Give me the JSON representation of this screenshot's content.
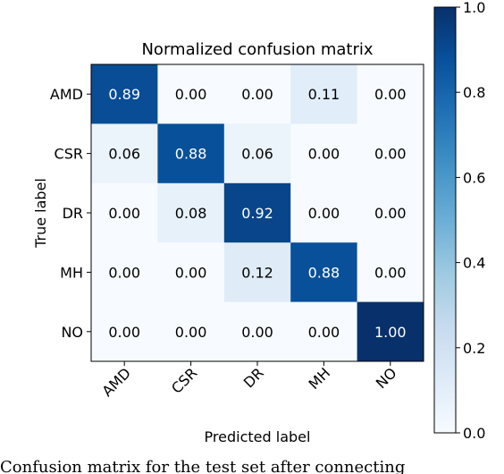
{
  "chart_data": {
    "type": "heatmap",
    "title": "Normalized confusion matrix",
    "xlabel": "Predicted label",
    "ylabel": "True label",
    "row_labels": [
      "AMD",
      "CSR",
      "DR",
      "MH",
      "NO"
    ],
    "col_labels": [
      "AMD",
      "CSR",
      "DR",
      "MH",
      "NO"
    ],
    "values": [
      [
        0.89,
        0.0,
        0.0,
        0.11,
        0.0
      ],
      [
        0.06,
        0.88,
        0.06,
        0.0,
        0.0
      ],
      [
        0.0,
        0.08,
        0.92,
        0.0,
        0.0
      ],
      [
        0.0,
        0.0,
        0.12,
        0.88,
        0.0
      ],
      [
        0.0,
        0.0,
        0.0,
        0.0,
        1.0
      ]
    ],
    "colorbar": {
      "min": 0.0,
      "max": 1.0,
      "ticks": [
        "0.0",
        "0.2",
        "0.4",
        "0.6",
        "0.8",
        "1.0"
      ]
    },
    "colormap": [
      "#f7fbff",
      "#deebf7",
      "#c6dbef",
      "#9ecae1",
      "#6baed6",
      "#4292c6",
      "#2171b5",
      "#08519c",
      "#08306b"
    ]
  },
  "caption": "Confusion matrix for the test set after connecting"
}
